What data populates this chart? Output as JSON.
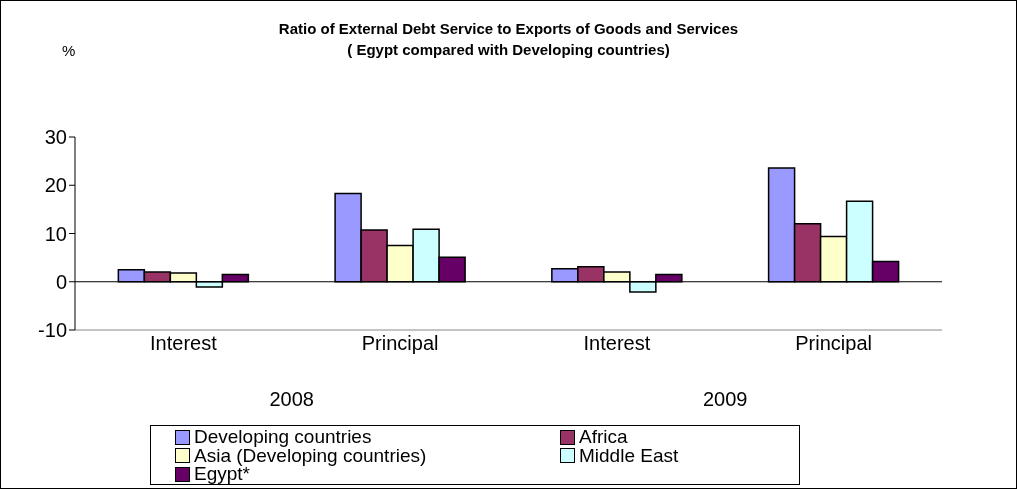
{
  "chart_data": {
    "type": "bar",
    "title": "Ratio of External Debt Service to Exports of Goods and Services",
    "subtitle": "( Egypt compared with Developing countries)",
    "ylabel": "%",
    "categories": [
      "Interest",
      "Principal",
      "Interest",
      "Principal"
    ],
    "annotations": [
      "2008",
      "2009"
    ],
    "series": [
      {
        "name": "Developing countries",
        "color": "#9999ff",
        "values": [
          2.5,
          18.3,
          2.7,
          23.6
        ]
      },
      {
        "name": "Africa",
        "color": "#993366",
        "values": [
          2.0,
          10.7,
          3.1,
          12.0
        ]
      },
      {
        "name": "Asia (Developing countries)",
        "color": "#ffffcc",
        "values": [
          1.8,
          7.5,
          2.0,
          9.4
        ]
      },
      {
        "name": "Middle East",
        "color": "#ccffff",
        "values": [
          -1.1,
          10.9,
          -2.1,
          16.7
        ]
      },
      {
        "name": "Egypt*",
        "color": "#660066",
        "values": [
          1.5,
          5.1,
          1.5,
          4.2
        ]
      }
    ],
    "ylim": [
      -10,
      30
    ],
    "yticks": [
      -10,
      0,
      10,
      20,
      30
    ],
    "legend": "bottom"
  }
}
